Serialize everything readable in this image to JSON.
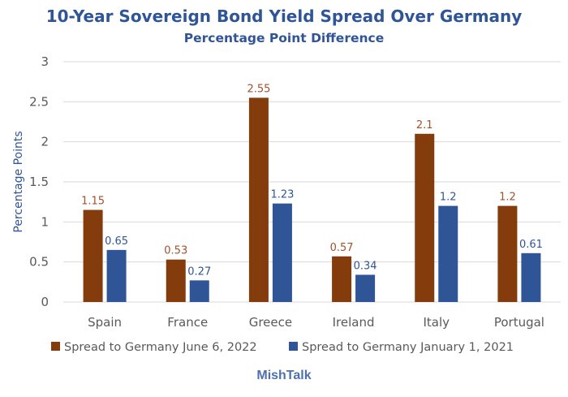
{
  "chart_data": {
    "type": "bar",
    "title": "10-Year Sovereign Bond Yield Spread Over Germany",
    "subtitle": "Percentage Point Difference",
    "xlabel": "",
    "ylabel": "Percentage Points",
    "ylim": [
      0,
      3
    ],
    "yticks": [
      0,
      0.5,
      1,
      1.5,
      2,
      2.5,
      3
    ],
    "ytick_labels": [
      "0",
      "0.5",
      "1",
      "1.5",
      "2",
      "2.5",
      "3"
    ],
    "grid": true,
    "legend_position": "bottom",
    "categories": [
      "Spain",
      "France",
      "Greece",
      "Ireland",
      "Italy",
      "Portugal"
    ],
    "series": [
      {
        "name": "Spread to Germany June 6, 2022",
        "color": "#843C0C",
        "label_color": "#A0522D",
        "values": [
          1.15,
          0.53,
          2.55,
          0.57,
          2.1,
          1.2
        ],
        "labels": [
          "1.15",
          "0.53",
          "2.55",
          "0.57",
          "2.1",
          "1.2"
        ]
      },
      {
        "name": "Spread to Germany January 1, 2021",
        "color": "#2F5597",
        "label_color": "#2F5597",
        "values": [
          0.65,
          0.27,
          1.23,
          0.34,
          1.2,
          0.61
        ],
        "labels": [
          "0.65",
          "0.27",
          "1.23",
          "0.34",
          "1.2",
          "0.61"
        ]
      }
    ],
    "footer": "MishTalk"
  }
}
